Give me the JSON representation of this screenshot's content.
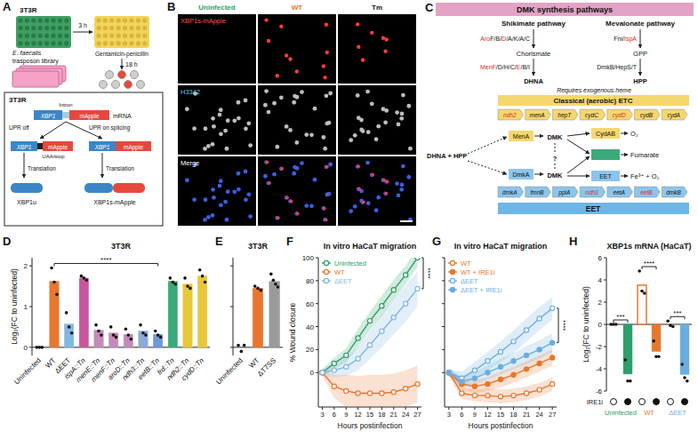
{
  "panel_letters": [
    "A",
    "B",
    "C",
    "D",
    "E",
    "F",
    "G",
    "H"
  ],
  "panel_a": {
    "plate_label": "3T3R",
    "library": [
      "E. faecalis",
      "trasposon library"
    ],
    "incubation": "3 h",
    "antibiotics": "Gentamicin-penicillin",
    "chase": "18 h",
    "box_title": "3T3R",
    "transcripts": [
      [
        "XBP1",
        "mApple"
      ],
      [
        "XBP1",
        "mApple"
      ],
      [
        "XBP1",
        "mApple"
      ]
    ],
    "intron": "Intron",
    "molecule": "mRNA",
    "branches": [
      "UPR off",
      "UPR on splicing"
    ],
    "stop": "UAA/stop",
    "translation": [
      "Translation",
      "Translation"
    ],
    "products": [
      "XBP1u",
      "XBP1s-mApple"
    ]
  },
  "panel_b": {
    "columns": [
      "Uninfected",
      "WT",
      "Tm"
    ],
    "rows": [
      "XBP1s-mApple",
      "H3342",
      "Merge"
    ]
  },
  "panel_c": {
    "header": "DMK synthesis pathways",
    "shikimate": {
      "title": "Shikimate pathway",
      "steps": [
        [
          {
            "text": "Aro",
            "hit": true
          },
          {
            "text": "F/B/",
            "hit": false
          },
          {
            "text": "D",
            "hit": true
          },
          {
            "text": "/A/K/A/C",
            "hit": false
          }
        ],
        [
          {
            "text": "MenF",
            "hit": true
          },
          {
            "text": "/D/H/C/",
            "hit": false
          },
          {
            "text": "E",
            "hit": true
          },
          {
            "text": "/B/I",
            "hit": false
          }
        ]
      ],
      "intermediates": [
        "Chorismate",
        "DHNA"
      ]
    },
    "mevalonate": {
      "title": "Mevalonate pathway",
      "steps": [
        [
          {
            "text": "Fni/",
            "hit": false
          },
          {
            "text": "IspA",
            "hit": true
          }
        ],
        [
          {
            "text": "DmkB/HepS/T",
            "hit": false
          }
        ]
      ],
      "intermediates": [
        "GPP",
        "HPP"
      ]
    },
    "heme_note": "Requires exogenous heme",
    "etc_label": "Classical (aerobic) ETC",
    "etc_genes": [
      {
        "text": "ndh2",
        "hit": true
      },
      {
        "text": "menA",
        "hit": false
      },
      {
        "text": "hepT",
        "hit": false
      },
      {
        "text": "cydC",
        "hit": false
      },
      {
        "text": "cydD",
        "hit": true
      },
      {
        "text": "cydB",
        "hit": false
      },
      {
        "text": "cydA",
        "hit": false
      }
    ],
    "substrates": "DHNA + HPP",
    "enzymes": [
      "MenA",
      "DmkA"
    ],
    "products": [
      "DMK",
      "DMK"
    ],
    "unknown": "?",
    "acceptor_enzymes": [
      "CydAB",
      "EET"
    ],
    "acceptors": [
      "O₂",
      "Fumarate",
      "Fe³⁺ + O₂"
    ],
    "eet_genes": [
      {
        "text": "dmkA",
        "hit": false
      },
      {
        "text": "fmnB",
        "hit": false
      },
      {
        "text": "pplA",
        "hit": false
      },
      {
        "text": "ndh3",
        "hit": true
      },
      {
        "text": "eetA",
        "hit": false
      },
      {
        "text": "eetB",
        "hit": true
      },
      {
        "text": "dmkB",
        "hit": false
      }
    ],
    "eet_label": "EET"
  },
  "chart_data": [
    {
      "type": "bar",
      "title": "3T3R",
      "y_label": "Log₂(FC to uninfected)",
      "categories": [
        "Uninfected",
        "WT",
        "ΔEET",
        "ispA::Tn",
        "menE::Tn",
        "menF::Tn",
        "aroD::Tn",
        "ndh3::Tn",
        "eetB::Tn",
        "frd::Tn",
        "ndh2::Tn",
        "cydD::Tn"
      ],
      "values": [
        0,
        1.62,
        0.57,
        1.7,
        0.42,
        0.35,
        0.32,
        0.4,
        0.32,
        1.62,
        1.55,
        1.75
      ],
      "replicates": [
        [
          0,
          0,
          0
        ],
        [
          1.95,
          1.6,
          1.3
        ],
        [
          0.85,
          0.5,
          0.35
        ],
        [
          1.75,
          1.7,
          1.65
        ],
        [
          0.55,
          0.4,
          0.3
        ],
        [
          0.5,
          0.3,
          0.25
        ],
        [
          0.45,
          0.3,
          0.2
        ],
        [
          0.55,
          0.35,
          0.3
        ],
        [
          0.4,
          0.3,
          0.25
        ],
        [
          1.7,
          1.6,
          1.55
        ],
        [
          1.7,
          1.5,
          1.45
        ],
        [
          1.9,
          1.75,
          1.6
        ]
      ],
      "colors": [
        "#2e9e6a",
        "#e8772e",
        "#7fb8e0",
        "#c9579f",
        "#c48bb8",
        "#c48bb8",
        "#c48bb8",
        "#8da9d6",
        "#6d9bd6",
        "#3aaa7a",
        "#e8c73a",
        "#e8c73a"
      ],
      "ylim": [
        -0.2,
        2.2
      ],
      "yticks": [
        0,
        1,
        2
      ],
      "annotations": [
        {
          "text": "****",
          "from": 1,
          "to": 8
        }
      ]
    },
    {
      "type": "bar",
      "title": "3T3R",
      "categories": [
        "Uninfected",
        "WT",
        "ΔT7SS"
      ],
      "values": [
        0,
        1.45,
        1.62
      ],
      "replicates": [
        [
          0.05,
          -0.1,
          0.05
        ],
        [
          1.5,
          1.45,
          1.4
        ],
        [
          1.8,
          1.65,
          1.55,
          1.48
        ]
      ],
      "colors": [
        "#2e9e6a",
        "#e8772e",
        "#9a9a9a"
      ],
      "ylim": [
        -0.2,
        2.2
      ],
      "yticks": [
        0,
        1,
        2
      ],
      "tick_labels": "x"
    },
    {
      "type": "line",
      "title": "In vitro HaCaT migration",
      "x_label": "Hours postinfection",
      "y_label": "% Wound closure",
      "x": [
        3,
        6,
        9,
        12,
        15,
        18,
        21,
        24,
        27
      ],
      "xlim": [
        2,
        28
      ],
      "xticks": [
        3,
        6,
        9,
        12,
        15,
        18,
        21,
        24,
        27
      ],
      "ylim": [
        -30,
        100
      ],
      "yticks": [
        0,
        20,
        40,
        60,
        80,
        100
      ],
      "legend": "upper left",
      "series": [
        {
          "name": "Uninfected",
          "color": "#2e9e6a",
          "marker": "circle-open",
          "values": [
            0,
            8,
            15,
            30,
            45,
            58,
            72,
            85,
            100
          ],
          "errors": [
            3,
            5,
            6,
            8,
            8,
            9,
            9,
            8,
            8
          ]
        },
        {
          "name": "WT",
          "color": "#e8772e",
          "marker": "circle-open",
          "values": [
            0,
            -12,
            -16,
            -18,
            -18,
            -18,
            -17,
            -14,
            -10
          ],
          "errors": [
            3,
            10,
            14,
            15,
            16,
            16,
            16,
            16,
            16
          ]
        },
        {
          "name": "ΔEET",
          "color": "#7fb8e0",
          "marker": "circle-open",
          "values": [
            0,
            2,
            5,
            12,
            24,
            36,
            48,
            60,
            73
          ],
          "errors": [
            3,
            6,
            8,
            10,
            12,
            14,
            15,
            16,
            15
          ]
        }
      ],
      "annotations": [
        {
          "text": "****",
          "series": [
            0,
            2
          ]
        }
      ]
    },
    {
      "type": "line",
      "title": "In vitro HaCaT migration",
      "x_label": "Hours postinfection",
      "x": [
        3,
        6,
        9,
        12,
        15,
        18,
        21,
        24,
        27
      ],
      "xlim": [
        2,
        28
      ],
      "xticks": [
        3,
        6,
        9,
        12,
        15,
        18,
        21,
        24,
        27
      ],
      "ylim": [
        -30,
        100
      ],
      "yticks": [
        0,
        20,
        40,
        60,
        80,
        100
      ],
      "legend": "upper left",
      "tick_labels": "x",
      "series": [
        {
          "name": "WT",
          "color": "#e8772e",
          "marker": "circle-open",
          "values": [
            0,
            -18,
            -20,
            -20,
            -21,
            -20,
            -18,
            -15,
            -10
          ],
          "errors": [
            3,
            5,
            5,
            6,
            6,
            6,
            6,
            6,
            6
          ]
        },
        {
          "name": "WT + IRE1i",
          "color": "#e8772e",
          "marker": "circle",
          "values": [
            0,
            -10,
            -12,
            -10,
            -6,
            -2,
            3,
            8,
            13
          ],
          "errors": [
            3,
            5,
            6,
            6,
            7,
            7,
            7,
            7,
            7
          ]
        },
        {
          "name": "ΔEET",
          "color": "#6aaee0",
          "marker": "circle-open",
          "values": [
            0,
            -5,
            2,
            10,
            18,
            27,
            37,
            47,
            56
          ],
          "errors": [
            3,
            6,
            7,
            8,
            9,
            10,
            10,
            10,
            10
          ]
        },
        {
          "name": "ΔEET + IRE1i",
          "color": "#6aaee0",
          "marker": "circle",
          "values": [
            0,
            -8,
            -5,
            0,
            5,
            10,
            15,
            20,
            26
          ],
          "errors": [
            3,
            5,
            6,
            6,
            7,
            7,
            8,
            8,
            8
          ]
        }
      ],
      "annotations": [
        {
          "text": "****",
          "series": [
            2,
            3
          ]
        }
      ]
    },
    {
      "type": "bar",
      "title": "XBP1s mRNA (HaCaT)",
      "y_label": "Log₂(FC to uninfected)",
      "categories": [
        null,
        null,
        null,
        null,
        null,
        null
      ],
      "values": [
        0,
        -4.47,
        3.53,
        -2.43,
        0,
        -4.5
      ],
      "replicates": [
        [
          0,
          0,
          0
        ],
        [
          -3.2,
          -5.1,
          -5.1
        ],
        [
          4.8,
          3.0,
          2.8
        ],
        [
          -1.5,
          -2.9,
          -2.9
        ],
        [
          0.3,
          -0.1,
          -0.2
        ],
        [
          -3.6,
          -4.8,
          -5.1
        ]
      ],
      "colors": [
        "#2e9e6a",
        "#2e9e6a",
        "#e8772e",
        "#e8772e",
        "#6aaee0",
        "#6aaee0"
      ],
      "treatment": [
        false,
        true,
        false,
        true,
        false,
        true
      ],
      "treatment_label": "IRE1i",
      "groups": [
        "Uninfected",
        "WT",
        "ΔEET"
      ],
      "ylim": [
        -6,
        6
      ],
      "yticks": [
        -6,
        -4,
        -2,
        0,
        2,
        4,
        6
      ],
      "annotations": [
        {
          "text": "***",
          "from": 0,
          "to": 1
        },
        {
          "text": "****",
          "from": 2,
          "to": 3
        },
        {
          "text": "***",
          "from": 4,
          "to": 5
        }
      ]
    }
  ]
}
